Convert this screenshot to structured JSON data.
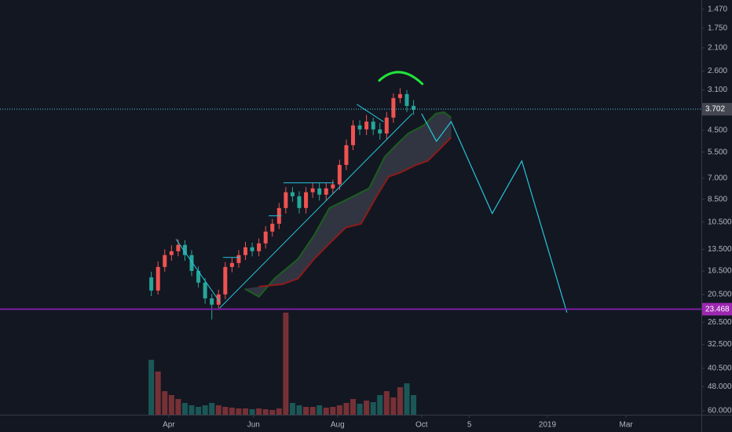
{
  "chart_data": {
    "type": "candlestick",
    "log_scale": true,
    "inverted": true,
    "grid": false,
    "up_color": "#26a69a",
    "down_color": "#ef5350",
    "x": [
      0,
      1,
      2,
      3,
      4,
      5,
      6,
      7,
      8,
      9,
      10,
      11,
      12,
      13,
      14,
      15,
      16,
      17,
      18,
      19,
      20,
      21,
      22,
      23,
      24,
      25,
      26,
      27,
      28,
      29,
      30,
      31,
      32,
      33,
      34,
      35,
      36,
      37,
      38,
      39
    ],
    "open": [
      17.5,
      19.76,
      15.89,
      14.24,
      13.74,
      12.96,
      14.24,
      16.48,
      18.36,
      21.24,
      22.51,
      20.47,
      15.89,
      15.32,
      14.24,
      13.25,
      13.74,
      12.78,
      11.46,
      10.66,
      9.22,
      7.97,
      8.27,
      9.22,
      7.97,
      7.69,
      8.15,
      7.69,
      7.41,
      6.19,
      5.16,
      4.3,
      4.46,
      4.15,
      4.46,
      4.63,
      4.0,
      3.34,
      3.22,
      3.59
    ],
    "high": [
      20.8,
      20.5,
      16.6,
      15.0,
      14.4,
      15.0,
      17.3,
      19.2,
      22.3,
      25.8,
      23.6,
      21.4,
      16.7,
      16.0,
      14.9,
      14.4,
      14.4,
      13.4,
      12.0,
      11.2,
      9.7,
      8.7,
      9.7,
      9.7,
      8.4,
      8.6,
      8.6,
      8.1,
      7.8,
      6.5,
      5.4,
      4.7,
      4.7,
      4.7,
      4.9,
      4.9,
      4.2,
      3.5,
      3.8,
      3.9
    ],
    "low": [
      16.6,
      15.1,
      13.5,
      13.0,
      12.3,
      12.4,
      13.6,
      15.8,
      17.6,
      20.4,
      19.6,
      15.2,
      14.6,
      13.6,
      12.6,
      12.7,
      12.2,
      10.9,
      10.2,
      8.8,
      7.6,
      7.6,
      7.9,
      7.6,
      7.3,
      7.3,
      7.3,
      7.1,
      5.9,
      4.9,
      4.1,
      4.1,
      3.9,
      4.0,
      4.2,
      3.8,
      3.2,
      3.05,
      3.1,
      3.4
    ],
    "close": [
      19.76,
      15.89,
      14.24,
      13.74,
      12.96,
      14.24,
      16.48,
      18.36,
      21.24,
      22.51,
      20.47,
      15.89,
      15.32,
      14.24,
      13.25,
      13.74,
      12.78,
      11.46,
      10.66,
      9.22,
      7.97,
      8.27,
      9.22,
      7.97,
      7.69,
      8.15,
      7.69,
      7.41,
      6.19,
      5.16,
      4.3,
      4.46,
      4.15,
      4.46,
      4.63,
      4.0,
      3.34,
      3.22,
      3.59,
      3.72
    ],
    "volume": [
      70,
      55,
      30,
      25,
      20,
      15,
      12,
      10,
      12,
      15,
      12,
      10,
      9,
      8,
      8,
      7,
      8,
      7,
      6,
      8,
      130,
      15,
      12,
      10,
      10,
      12,
      9,
      10,
      12,
      15,
      20,
      14,
      18,
      16,
      25,
      30,
      22,
      35,
      40,
      25
    ],
    "cloud": {
      "upper": {
        "color": "#1b5e20",
        "x": [
          13.9,
          16.0,
          18.3,
          21.8,
          24.2,
          26.5,
          28.9,
          32.4,
          34.7,
          36.4,
          38.2,
          40.5,
          42.3,
          43.5,
          44.6
        ],
        "values": [
          19.46,
          20.93,
          17.71,
          14.78,
          11.88,
          9.22,
          8.57,
          7.69,
          5.75,
          5.16,
          4.63,
          4.3,
          3.86,
          3.8,
          4.0
        ]
      },
      "lower": {
        "color": "#8e1b1b",
        "x": [
          16.0,
          19.5,
          21.8,
          24.2,
          26.5,
          28.9,
          31.2,
          33.5,
          35.3,
          37.0,
          39.4,
          41.1,
          42.9,
          44.6
        ],
        "values": [
          19.05,
          18.64,
          17.71,
          14.78,
          12.78,
          11.05,
          10.66,
          8.27,
          6.9,
          6.65,
          6.19,
          5.97,
          5.35,
          4.8
        ]
      },
      "fill": "#3a3d4a"
    },
    "projection": {
      "color": "#26c6da",
      "x": [
        40.2,
        42.4,
        44.6,
        50.7,
        55.1,
        61.8
      ],
      "values": [
        3.86,
        4.98,
        4.15,
        9.7,
        5.97,
        24.2
      ]
    },
    "drawings": [
      {
        "color": "#26c6da",
        "x": [
          10.2,
          38.8
        ],
        "values": [
          23.17,
          3.86
        ]
      },
      {
        "color": "#26c6da",
        "x": [
          3.7,
          10.2
        ],
        "values": [
          12.32,
          22.0
        ]
      },
      {
        "color": "#26c6da",
        "x": [
          19.7,
          27.1
        ],
        "values": [
          7.31,
          7.31
        ]
      },
      {
        "color": "#26c6da",
        "x": [
          30.6,
          34.5
        ],
        "values": [
          3.54,
          4.15
        ]
      },
      {
        "color": "#26c6da",
        "x": [
          10.7,
          13.1
        ],
        "values": [
          14.56,
          14.56
        ]
      },
      {
        "color": "#26c6da",
        "x": [
          17.5,
          19.3
        ],
        "values": [
          9.91,
          9.91
        ]
      },
      {
        "color": "#22e33a",
        "x": [
          33.9,
          37.0,
          40.3
        ],
        "values": [
          2.84,
          2.63,
          2.93
        ]
      }
    ],
    "price_lines": [
      {
        "value": 3.702,
        "label": "3.702",
        "color": "#4dd0e1",
        "tag_color": "#434651",
        "dashed": true
      },
      {
        "value": 23.468,
        "label": "23.468",
        "color": "#7b1fa2",
        "tag_color": "#9c27b0",
        "dashed": false
      }
    ],
    "ylim": [
      1.35,
      62.2
    ],
    "yticks": [
      {
        "value": 1.47,
        "label": "1.470"
      },
      {
        "value": 1.75,
        "label": "1.750"
      },
      {
        "value": 2.1,
        "label": "2.100"
      },
      {
        "value": 2.6,
        "label": "2.600"
      },
      {
        "value": 3.1,
        "label": "3.100"
      },
      {
        "value": 4.5,
        "label": "4.500"
      },
      {
        "value": 5.5,
        "label": "5.500"
      },
      {
        "value": 7,
        "label": "7.000"
      },
      {
        "value": 8.5,
        "label": "8.500"
      },
      {
        "value": 10.5,
        "label": "10.500"
      },
      {
        "value": 13.5,
        "label": "13.500"
      },
      {
        "value": 16.5,
        "label": "16.500"
      },
      {
        "value": 20.5,
        "label": "20.500"
      },
      {
        "value": 26.5,
        "label": "26.500"
      },
      {
        "value": 32.5,
        "label": "32.500"
      },
      {
        "value": 40.5,
        "label": "40.500"
      },
      {
        "value": 48,
        "label": "48.000"
      },
      {
        "value": 60,
        "label": "60.000"
      }
    ],
    "xlim": [
      -22.5,
      81.8
    ],
    "xticks": [
      {
        "value": 2.6,
        "label": "Apr"
      },
      {
        "value": 15.2,
        "label": "Jun"
      },
      {
        "value": 27.7,
        "label": "Aug"
      },
      {
        "value": 40.2,
        "label": "Oct"
      },
      {
        "value": 47.3,
        "label": "5"
      },
      {
        "value": 58.9,
        "label": "2019"
      },
      {
        "value": 70.6,
        "label": "Mar"
      }
    ]
  }
}
